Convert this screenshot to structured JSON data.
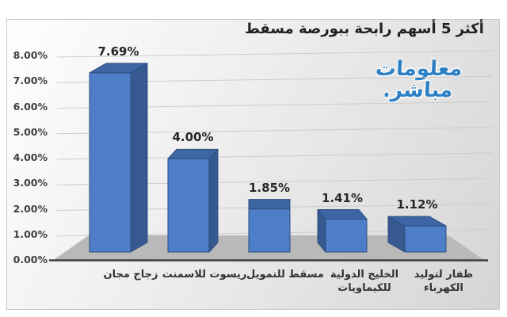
{
  "chart": {
    "watermark": {
      "line1": "معلومات",
      "line2": "مباشر.",
      "color": "#2e80c4"
    },
    "chart_data": {
      "type": "bar",
      "style": "3d-column",
      "title": "أكثر 5 أسهم رابحة ببورصة مسقط",
      "categories": [
        "زجاج مجان",
        "ريسوت للاسمنت",
        "مسقط للتمويل",
        "الخليج الدولية للكيماويات",
        "ظفار لتوليد الكهرباء"
      ],
      "values": [
        7.69,
        4.0,
        1.85,
        1.41,
        1.12
      ],
      "data_labels": [
        "7.69%",
        "4.00%",
        "1.85%",
        "1.41%",
        "1.12%"
      ],
      "y_ticks": [
        "8.00%",
        "7.00%",
        "6.00%",
        "5.00%",
        "4.00%",
        "3.00%",
        "2.00%",
        "1.00%",
        "0.00%"
      ],
      "ylim": [
        0,
        8
      ],
      "xlabel": "",
      "ylabel": "",
      "grid": true,
      "legend": "none",
      "direction": "rtl",
      "colors": {
        "bar_front": "#4d7ec7",
        "bar_top": "#3f66a4",
        "bar_side": "#36598f",
        "bar_outline": "#2c4d7f",
        "floor": "#b9b9b9",
        "gridline": "#cccccc",
        "axis_line": "#3f3f3f",
        "background_light": "#fefefe",
        "background_dark": "#d5d5d5",
        "text": "#262626"
      }
    }
  }
}
